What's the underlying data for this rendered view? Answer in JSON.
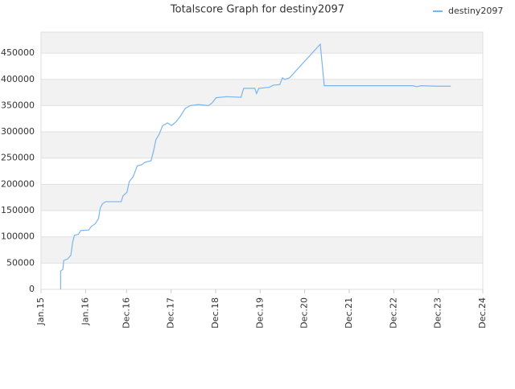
{
  "chart_data": {
    "type": "line",
    "title": "Totalscore Graph for destiny2097",
    "x": [
      2015.44,
      2015.44,
      2015.49,
      2015.51,
      2015.6,
      2015.67,
      2015.71,
      2015.75,
      2015.84,
      2015.89,
      2016.07,
      2016.13,
      2016.22,
      2016.29,
      2016.33,
      2016.38,
      2016.45,
      2016.8,
      2016.84,
      2016.93,
      2016.98,
      2017.07,
      2017.16,
      2017.27,
      2017.33,
      2017.47,
      2017.53,
      2017.58,
      2017.65,
      2017.73,
      2017.84,
      2017.93,
      2018.04,
      2018.13,
      2018.24,
      2018.35,
      2018.53,
      2018.76,
      2018.84,
      2018.93,
      2019.16,
      2019.49,
      2019.55,
      2019.8,
      2019.84,
      2019.89,
      2020.13,
      2020.22,
      2020.36,
      2020.42,
      2020.47,
      2020.58,
      2021.27,
      2021.36,
      2021.71,
      2023.35,
      2023.44,
      2023.53,
      2023.89,
      2024.2
    ],
    "series": [
      {
        "name": "destiny2097",
        "color": "#7cb5ec",
        "values": [
          0,
          35000,
          38000,
          55000,
          58000,
          65000,
          90000,
          103000,
          105000,
          112000,
          113000,
          120000,
          125000,
          135000,
          155000,
          163000,
          167000,
          167000,
          178000,
          185000,
          205000,
          215000,
          235000,
          238000,
          242000,
          245000,
          265000,
          285000,
          295000,
          312000,
          317000,
          312000,
          320000,
          330000,
          345000,
          350000,
          352000,
          350000,
          355000,
          365000,
          367000,
          366000,
          383000,
          383000,
          373000,
          383000,
          385000,
          389000,
          390000,
          403000,
          400000,
          403000,
          467000,
          388000,
          388000,
          388000,
          386000,
          388000,
          387000,
          387000
        ]
      }
    ],
    "xlim": [
      2015,
      2024.92
    ],
    "xticks": [
      {
        "value": 2015,
        "label": "Jan.15"
      },
      {
        "value": 2016,
        "label": "Jan.16"
      },
      {
        "value": 2016.92,
        "label": "Dec.16"
      },
      {
        "value": 2017.92,
        "label": "Dec.17"
      },
      {
        "value": 2018.92,
        "label": "Dec.18"
      },
      {
        "value": 2019.92,
        "label": "Dec.19"
      },
      {
        "value": 2020.92,
        "label": "Dec.20"
      },
      {
        "value": 2021.92,
        "label": "Dec.21"
      },
      {
        "value": 2022.92,
        "label": "Dec.22"
      },
      {
        "value": 2023.92,
        "label": "Dec.23"
      },
      {
        "value": 2024.92,
        "label": "Dec.24"
      }
    ],
    "ylim": [
      0,
      490000
    ],
    "yticks": [
      0,
      50000,
      100000,
      150000,
      200000,
      250000,
      300000,
      350000,
      400000,
      450000
    ],
    "grid": true,
    "legend": "top-right"
  }
}
